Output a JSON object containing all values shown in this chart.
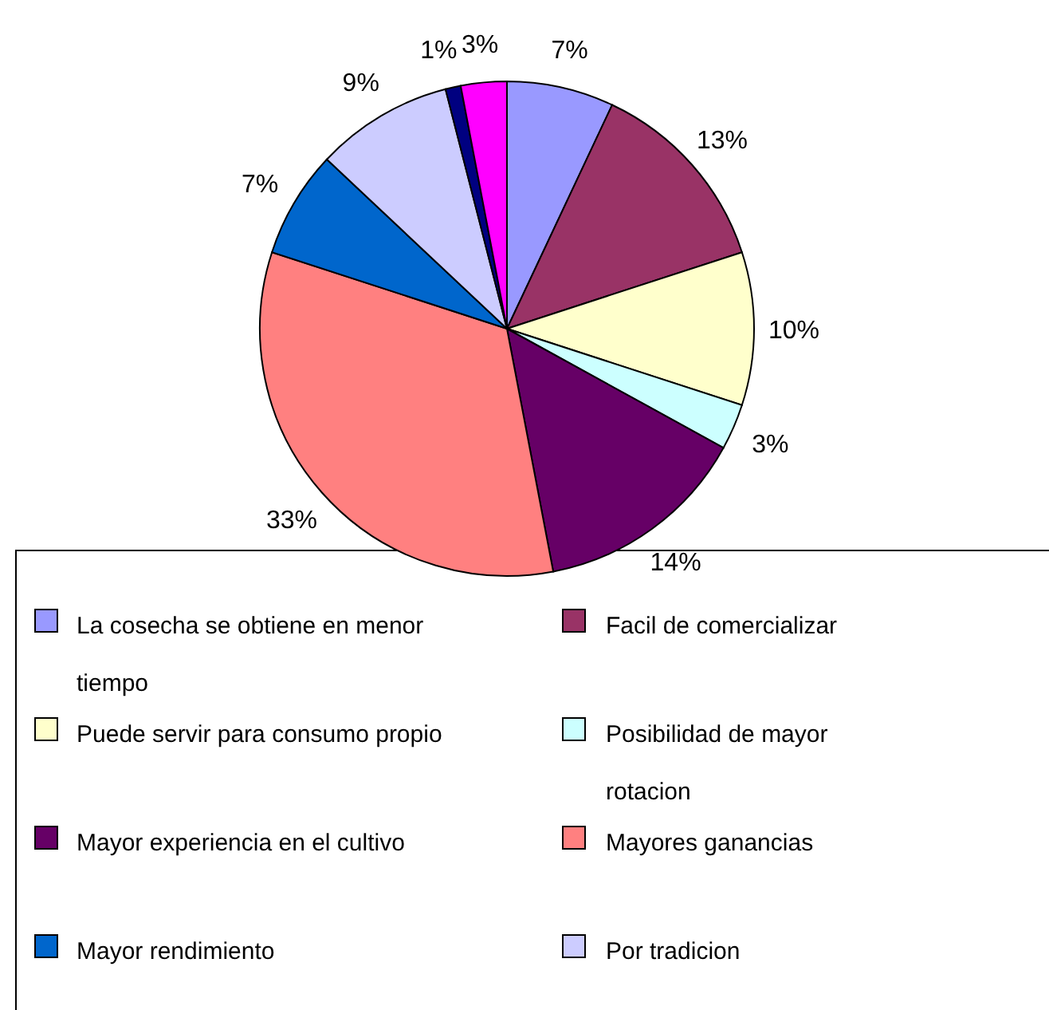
{
  "chart_data": {
    "type": "pie",
    "categories": [
      "La cosecha se obtiene en menor tiempo",
      "Facil de comercializar",
      "Puede servir para consumo propio",
      "Posibilidad de mayor rotacion",
      "Mayor experiencia en el cultivo",
      "Mayores ganancias",
      "Mayor rendimiento",
      "Por tradicion",
      null,
      null
    ],
    "values": [
      7,
      13,
      10,
      3,
      14,
      33,
      7,
      9,
      1,
      3
    ],
    "value_labels": [
      "7%",
      "13%",
      "10%",
      "3%",
      "14%",
      "33%",
      "7%",
      "9%",
      "1%",
      "3%"
    ],
    "colors": [
      "#9999ff",
      "#993366",
      "#ffffcc",
      "#ccffff",
      "#660066",
      "#ff8080",
      "#0066cc",
      "#ccccff",
      "#000080",
      "#ff00ff"
    ],
    "legend": "bottom"
  }
}
